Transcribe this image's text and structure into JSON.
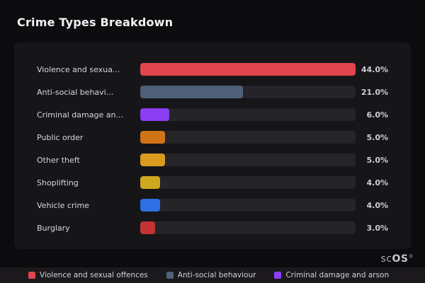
{
  "page": {
    "title": "Crime Types Breakdown",
    "watermark_prefix": "sc",
    "watermark_main": "OS",
    "watermark_reg": "®"
  },
  "colors": {
    "background": "#0c0c0e",
    "card": "#161619",
    "track": "#242429",
    "legend_strip": "#1b191c"
  },
  "chart_data": {
    "type": "bar",
    "orientation": "horizontal",
    "title": "Crime Types Breakdown",
    "categories": [
      "Violence and sexua...",
      "Anti-social behavi...",
      "Criminal damage an...",
      "Public order",
      "Other theft",
      "Shoplifting",
      "Vehicle crime",
      "Burglary"
    ],
    "values": [
      44.0,
      21.0,
      6.0,
      5.0,
      5.0,
      4.0,
      4.0,
      3.0
    ],
    "value_labels": [
      "44.0%",
      "21.0%",
      "6.0%",
      "5.0%",
      "5.0%",
      "4.0%",
      "4.0%",
      "3.0%"
    ],
    "bar_colors": [
      "#e2444e",
      "#4f6078",
      "#8b3ef2",
      "#d17418",
      "#d99a1e",
      "#d0a81e",
      "#2e6fe3",
      "#c23434"
    ],
    "xlim": [
      0,
      44
    ],
    "scale": "bars scaled relative to max value (44%)",
    "grid": false,
    "legend_position": "bottom",
    "legend": [
      {
        "label": "Violence and sexual offences",
        "color": "#e2444e"
      },
      {
        "label": "Anti-social behaviour",
        "color": "#4f6078"
      },
      {
        "label": "Criminal damage and arson",
        "color": "#8b3ef2"
      }
    ]
  }
}
